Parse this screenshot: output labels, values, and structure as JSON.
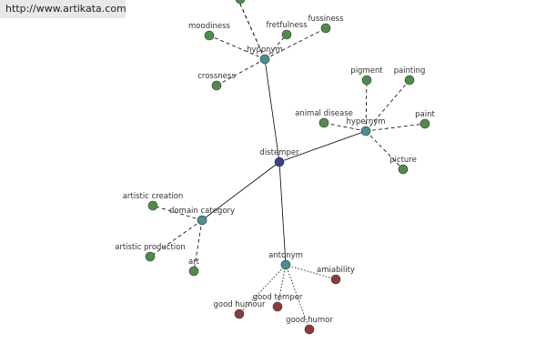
{
  "banner": {
    "url": "http://www.artikata.com"
  },
  "nodes": [
    {
      "label": "distemper"
    },
    {
      "label": "hyponym"
    },
    {
      "label": "hypernym"
    },
    {
      "label": "domain category"
    },
    {
      "label": "antonym"
    },
    {
      "label": "moodiness"
    },
    {
      "label": "fretfulness"
    },
    {
      "label": "fussiness"
    },
    {
      "label": "crossness"
    },
    {
      "label": "pigment"
    },
    {
      "label": "painting"
    },
    {
      "label": "paint"
    },
    {
      "label": "animal disease"
    },
    {
      "label": "picture"
    },
    {
      "label": "artistic creation"
    },
    {
      "label": "artistic production"
    },
    {
      "label": "art"
    },
    {
      "label": "amiability"
    },
    {
      "label": "good temper"
    },
    {
      "label": "good humour"
    },
    {
      "label": "good humor"
    }
  ]
}
